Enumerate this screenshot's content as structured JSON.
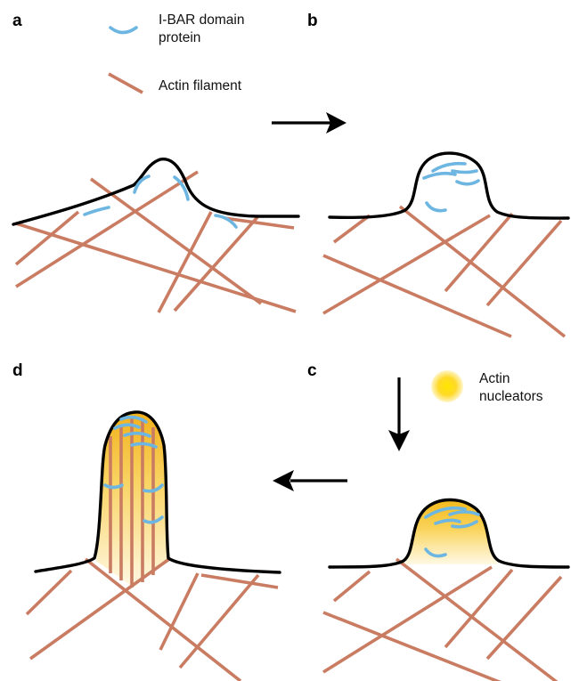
{
  "panels": {
    "a": "a",
    "b": "b",
    "c": "c",
    "d": "d"
  },
  "legend": {
    "ibar_line1": "I-BAR domain",
    "ibar_line2": "protein",
    "actin": "Actin filament",
    "nucleators_line1": "Actin",
    "nucleators_line2": "nucleators"
  },
  "colors": {
    "actin": "#c97c62",
    "ibar": "#6db6e2",
    "membrane": "#000000",
    "nucleator_core": "#ffe000",
    "nucleator_edge": "#fff6c8"
  }
}
